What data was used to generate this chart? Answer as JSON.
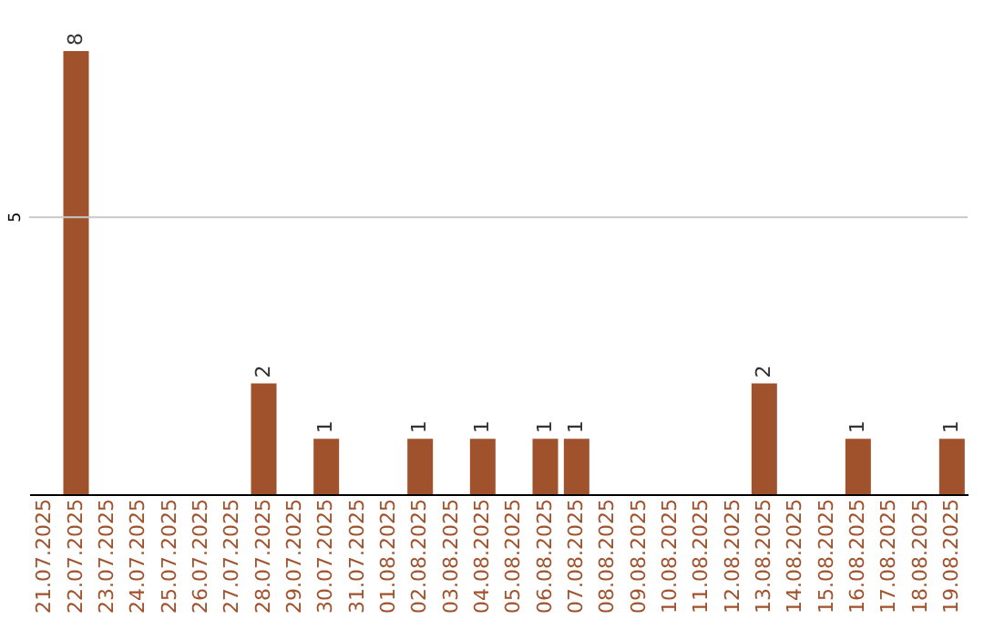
{
  "chart_data": {
    "type": "bar",
    "categories": [
      "21.07.2025",
      "22.07.2025",
      "23.07.2025",
      "24.07.2025",
      "25.07.2025",
      "26.07.2025",
      "27.07.2025",
      "28.07.2025",
      "29.07.2025",
      "30.07.2025",
      "31.07.2025",
      "01.08.2025",
      "02.08.2025",
      "03.08.2025",
      "04.08.2025",
      "05.08.2025",
      "06.08.2025",
      "07.08.2025",
      "08.08.2025",
      "09.08.2025",
      "10.08.2025",
      "11.08.2025",
      "12.08.2025",
      "13.08.2025",
      "14.08.2025",
      "15.08.2025",
      "16.08.2025",
      "17.08.2025",
      "18.08.2025",
      "19.08.2025"
    ],
    "values": [
      0,
      8,
      0,
      0,
      0,
      0,
      0,
      2,
      0,
      1,
      0,
      0,
      1,
      0,
      1,
      0,
      1,
      1,
      0,
      0,
      0,
      0,
      0,
      2,
      0,
      0,
      1,
      0,
      0,
      1
    ],
    "value_labels": [
      null,
      "8",
      null,
      null,
      null,
      null,
      null,
      "2",
      null,
      "1",
      null,
      null,
      "1",
      null,
      "1",
      null,
      "1",
      "1",
      null,
      null,
      null,
      null,
      null,
      "2",
      null,
      null,
      "1",
      null,
      null,
      "1"
    ],
    "color": "#a0522d",
    "ref_lines": [
      {
        "axis": "y",
        "value": 5,
        "label": "5",
        "color": "#c8c8c8"
      }
    ]
  }
}
